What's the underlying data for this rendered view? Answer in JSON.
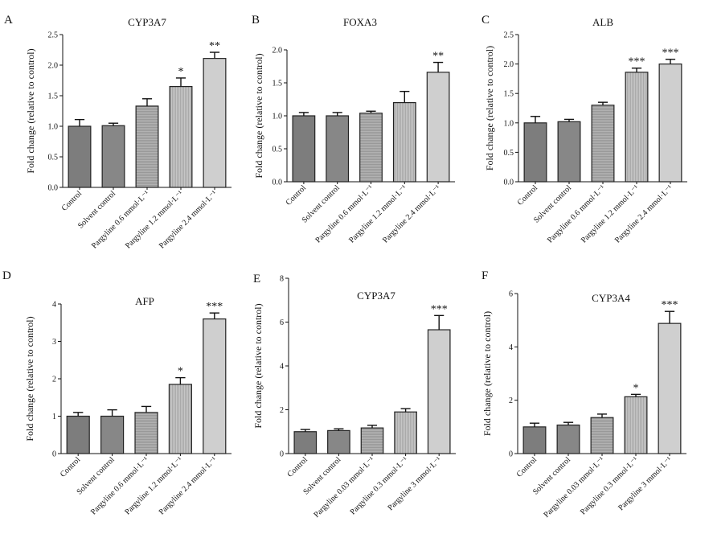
{
  "chart_data": [
    {
      "panel": "A",
      "type": "bar",
      "title": "CYP3A7",
      "ylabel": "Fold change (relative to control)",
      "xlabel": "",
      "ylim": [
        0,
        2.5
      ],
      "yticks": [
        "0.0",
        "0.5",
        "1.0",
        "1.5",
        "2.0",
        "2.5"
      ],
      "categories": [
        "Control",
        "Solvent control",
        "Pargyline 0.6 mmol·L⁻¹",
        "Pargyline 1.2 mmol·L⁻¹",
        "Pargyline 2.4 mmol·L⁻¹"
      ],
      "values": [
        1.0,
        1.01,
        1.33,
        1.65,
        2.11
      ],
      "errors": [
        0.11,
        0.04,
        0.12,
        0.14,
        0.1
      ],
      "significance": [
        "",
        "",
        "",
        "*",
        "**"
      ],
      "bar_colors": [
        "#7d7d7d",
        "#878787",
        "#a9a9a9",
        "#bebebe",
        "#cfcfcf"
      ]
    },
    {
      "panel": "B",
      "type": "bar",
      "title": "FOXA3",
      "ylabel": "Fold change (relative to control)",
      "xlabel": "",
      "ylim": [
        0,
        2.0
      ],
      "yticks": [
        "0.0",
        "0.5",
        "1.0",
        "1.5",
        "2.0"
      ],
      "categories": [
        "Control",
        "Solvent control",
        "Pargyline 0.6 mmol·L⁻¹",
        "Pargyline 1.2 mmol·L⁻¹",
        "Pargyline 2.4 mmol·L⁻¹"
      ],
      "values": [
        1.0,
        1.0,
        1.04,
        1.2,
        1.66
      ],
      "errors": [
        0.05,
        0.05,
        0.03,
        0.17,
        0.15
      ],
      "significance": [
        "",
        "",
        "",
        "",
        "**"
      ],
      "bar_colors": [
        "#7d7d7d",
        "#878787",
        "#a9a9a9",
        "#bebebe",
        "#cfcfcf"
      ]
    },
    {
      "panel": "C",
      "type": "bar",
      "title": "ALB",
      "ylabel": "Fold change (relative to control)",
      "xlabel": "",
      "ylim": [
        0,
        2.5
      ],
      "yticks": [
        "0.0",
        "0.5",
        "1.0",
        "1.5",
        "2.0",
        "2.5"
      ],
      "categories": [
        "Control",
        "Solvent control",
        "Pargyline 0.6 mmol·L⁻¹",
        "Pargyline 1.2 mmol·L⁻¹",
        "Pargyline 2.4 mmol·L⁻¹"
      ],
      "values": [
        1.0,
        1.02,
        1.3,
        1.86,
        2.0
      ],
      "errors": [
        0.11,
        0.04,
        0.05,
        0.07,
        0.08
      ],
      "significance": [
        "",
        "",
        "",
        "***",
        "***"
      ],
      "bar_colors": [
        "#7d7d7d",
        "#878787",
        "#a9a9a9",
        "#bebebe",
        "#cfcfcf"
      ]
    },
    {
      "panel": "D",
      "type": "bar",
      "title": "AFP",
      "ylabel": "Fold change (relative to control)",
      "xlabel": "",
      "ylim": [
        0,
        4
      ],
      "yticks": [
        "0",
        "1",
        "2",
        "3",
        "4"
      ],
      "categories": [
        "Control",
        "Solvent control",
        "Pargyline 0.6 mmol·L⁻¹",
        "Pargyline 1.2 mmol·L⁻¹",
        "Pargyline 2.4 mmol·L⁻¹"
      ],
      "values": [
        1.0,
        1.0,
        1.1,
        1.85,
        3.6
      ],
      "errors": [
        0.1,
        0.17,
        0.16,
        0.18,
        0.16
      ],
      "significance": [
        "",
        "",
        "",
        "*",
        "***"
      ],
      "bar_colors": [
        "#7d7d7d",
        "#878787",
        "#a9a9a9",
        "#bebebe",
        "#cfcfcf"
      ]
    },
    {
      "panel": "E",
      "type": "bar",
      "title": "CYP3A7",
      "ylabel": "Fold change (relative to control)",
      "xlabel": "",
      "ylim": [
        0,
        8
      ],
      "yticks": [
        "0",
        "2",
        "4",
        "6",
        "8"
      ],
      "categories": [
        "Control",
        "Solvent control",
        "Pargyline 0.03 mmol·L⁻¹",
        "Pargyline 0.3 mmol·L⁻¹",
        "Pargyline 3 mmol·L⁻¹"
      ],
      "values": [
        1.0,
        1.05,
        1.17,
        1.9,
        5.65
      ],
      "errors": [
        0.1,
        0.08,
        0.12,
        0.15,
        0.65
      ],
      "significance": [
        "",
        "",
        "",
        "",
        "***"
      ],
      "bar_colors": [
        "#7d7d7d",
        "#878787",
        "#a9a9a9",
        "#bebebe",
        "#cfcfcf"
      ]
    },
    {
      "panel": "F",
      "type": "bar",
      "title": "CYP3A4",
      "ylabel": "Fold change (relative to control)",
      "xlabel": "",
      "ylim": [
        0,
        6
      ],
      "yticks": [
        "0",
        "2",
        "4",
        "6"
      ],
      "categories": [
        "Control",
        "Solvent control",
        "Pargyline 0.03 mmol·L⁻¹",
        "Pargyline 0.3 mmol·L⁻¹",
        "Pargyline 3 mmol·L⁻¹"
      ],
      "values": [
        1.0,
        1.07,
        1.35,
        2.13,
        4.88
      ],
      "errors": [
        0.14,
        0.1,
        0.13,
        0.09,
        0.45
      ],
      "significance": [
        "",
        "",
        "",
        "*",
        "***"
      ],
      "bar_colors": [
        "#7d7d7d",
        "#878787",
        "#a9a9a9",
        "#bebebe",
        "#cfcfcf"
      ]
    }
  ]
}
